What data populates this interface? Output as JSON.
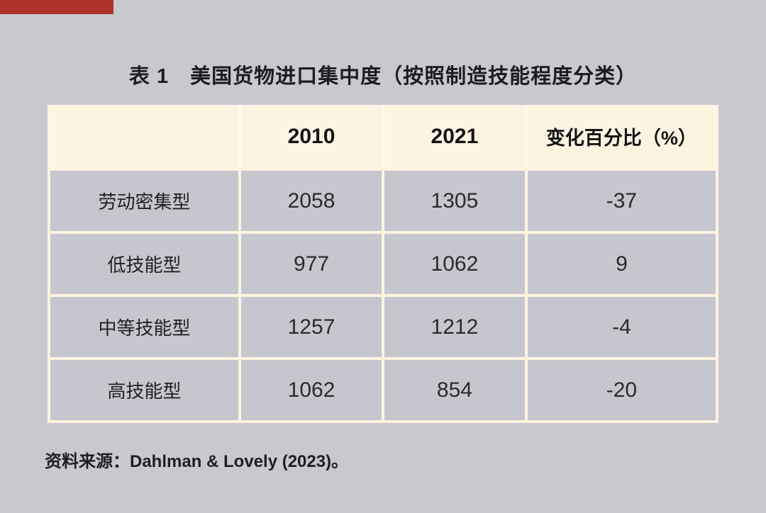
{
  "colors": {
    "page_bg": "#c8c8cf",
    "accent_red": "#ae322a",
    "header_cream": "#fcf4e1",
    "cell_gray": "#c6c7ce"
  },
  "chart_data": {
    "type": "table",
    "title": "表 1　美国货物进口集中度（按照制造技能程度分类）",
    "columns": [
      "",
      "2010",
      "2021",
      "变化百分比（%）"
    ],
    "rows": [
      [
        "劳动密集型",
        "2058",
        "1305",
        "-37"
      ],
      [
        "低技能型",
        "977",
        "1062",
        "9"
      ],
      [
        "中等技能型",
        "1257",
        "1212",
        "-4"
      ],
      [
        "高技能型",
        "1062",
        "854",
        "-20"
      ]
    ],
    "source": "资料来源：Dahlman & Lovely (2023)。"
  }
}
